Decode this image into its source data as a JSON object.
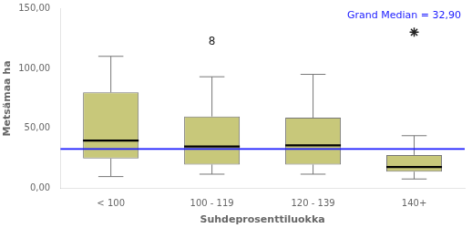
{
  "chart_data": {
    "type": "box",
    "categories": [
      "< 100",
      "100 - 119",
      "120 - 139",
      "140+"
    ],
    "boxes": [
      {
        "q1": 25,
        "median": 40,
        "q3": 80,
        "whisker_low": 10,
        "whisker_high": 110
      },
      {
        "q1": 20,
        "median": 35,
        "q3": 60,
        "whisker_low": 12,
        "whisker_high": 93
      },
      {
        "q1": 20,
        "median": 36,
        "q3": 59,
        "whisker_low": 12,
        "whisker_high": 95
      },
      {
        "q1": 14,
        "median": 18,
        "q3": 28,
        "whisker_low": 8,
        "whisker_high": 44
      }
    ],
    "color": "#c8c87a",
    "reference_line": {
      "value": 32.9,
      "label": "Grand Median = 32,90",
      "color": "#1a1aff"
    },
    "annotations": [
      {
        "text": "8",
        "x": "100 - 119",
        "y": 122,
        "color": "#222222"
      }
    ],
    "fliers": [
      {
        "x": "140+",
        "y": 130,
        "marker": "star",
        "color": "#222222"
      }
    ],
    "xlabel": "Suhdeprosenttiluokka",
    "ylabel": "Metsämaa ha",
    "ylim": [
      0,
      150
    ],
    "yticks": [
      {
        "value": 0,
        "label": "0,00"
      },
      {
        "value": 50,
        "label": "50,00"
      },
      {
        "value": 100,
        "label": "100,00"
      },
      {
        "value": 150,
        "label": "150,00"
      }
    ],
    "grid": false
  }
}
